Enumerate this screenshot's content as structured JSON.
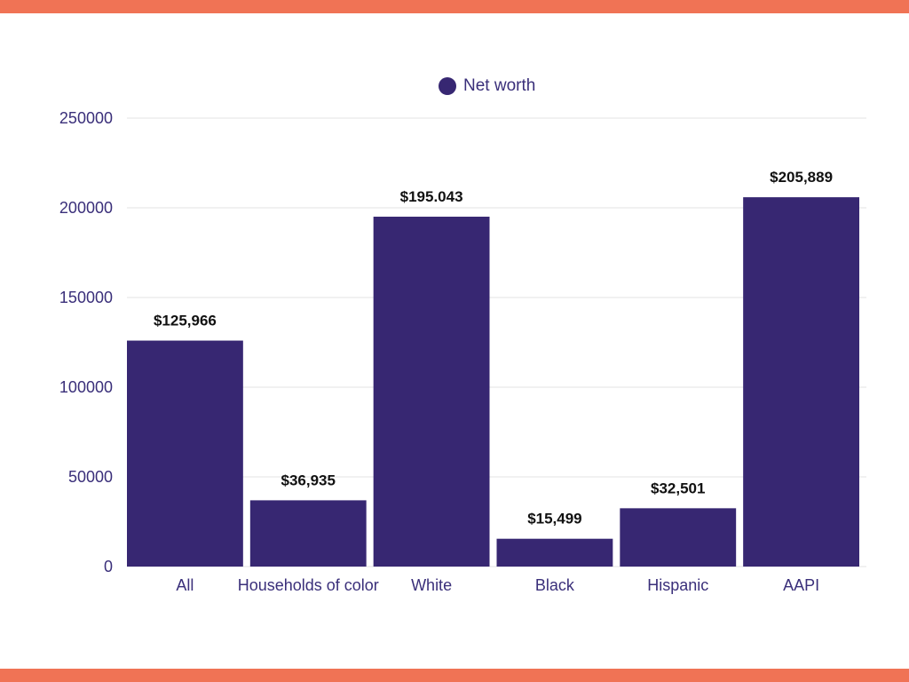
{
  "colors": {
    "band": "#f07355",
    "bar": "#372772",
    "axis_text": "#3a2f7a",
    "label_text": "#111111",
    "grid": "#e3e3e3"
  },
  "legend": {
    "label": "Net worth"
  },
  "chart_data": {
    "type": "bar",
    "categories": [
      "All",
      "Households of color",
      "White",
      "Black",
      "Hispanic",
      "AAPI"
    ],
    "series": [
      {
        "name": "Net worth",
        "values": [
          125966,
          36935,
          195043,
          15499,
          32501,
          205889
        ],
        "data_labels": [
          "$125,966",
          "$36,935",
          "$195.043",
          "$15,499",
          "$32,501",
          "$205,889"
        ]
      }
    ],
    "ylim": [
      0,
      250000
    ],
    "yticks": [
      0,
      50000,
      100000,
      150000,
      200000,
      250000
    ],
    "ytick_labels": [
      "0",
      "50000",
      "100000",
      "150000",
      "200000",
      "250000"
    ],
    "grid": true,
    "legend_position": "top-center",
    "title": "",
    "xlabel": "",
    "ylabel": ""
  }
}
